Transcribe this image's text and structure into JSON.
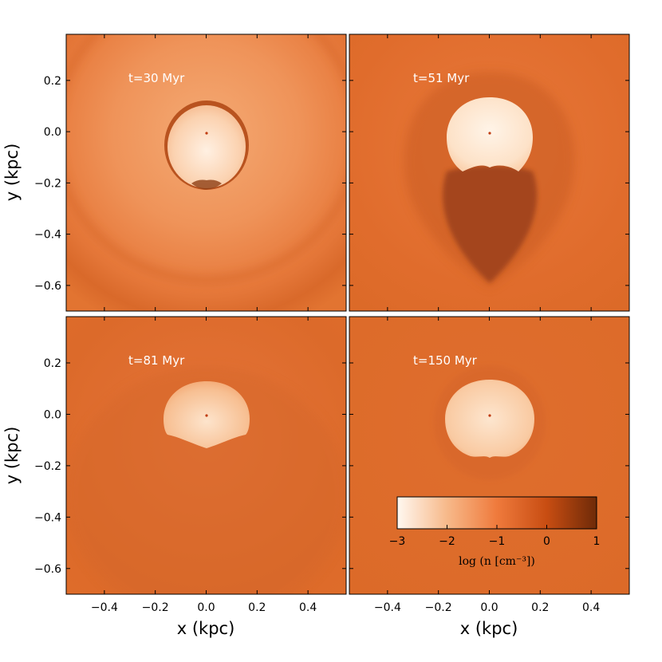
{
  "chart_data": {
    "type": "heatmap",
    "title": "",
    "xlabel": "x (kpc)",
    "ylabel": "y (kpc)",
    "xlim": [
      -0.55,
      0.55
    ],
    "ylim": [
      -0.7,
      0.38
    ],
    "xticks": [
      -0.4,
      -0.2,
      0.0,
      0.2,
      0.4
    ],
    "xtick_labels": [
      "−0.4",
      "−0.2",
      "0.0",
      "0.2",
      "0.4"
    ],
    "yticks": [
      0.2,
      0.0,
      -0.2,
      -0.4,
      -0.6
    ],
    "ytick_labels": [
      "0.2",
      "0.0",
      "−0.2",
      "−0.4",
      "−0.6"
    ],
    "panels": [
      {
        "label": "t=30 Myr",
        "time_myr": 30
      },
      {
        "label": "t=51 Myr",
        "time_myr": 51
      },
      {
        "label": "t=81 Myr",
        "time_myr": 81
      },
      {
        "label": "t=150 Myr",
        "time_myr": 150
      }
    ],
    "colorbar": {
      "label": "log (n [cm⁻³])",
      "range": [
        -3,
        1
      ],
      "ticks": [
        -3,
        -2,
        -1,
        0,
        1
      ],
      "tick_labels": [
        "−3",
        "−2",
        "−1",
        "0",
        "1"
      ],
      "colors": [
        "#fff8f0",
        "#f7b98a",
        "#ef7a3c",
        "#c84d12",
        "#6e2a08"
      ]
    }
  }
}
